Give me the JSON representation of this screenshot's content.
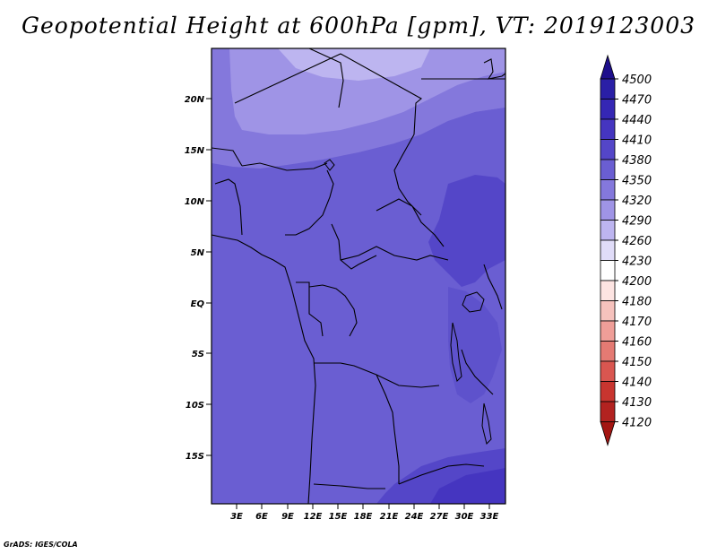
{
  "title": "Geopotential Height at 600hPa [gpm], VT: 2019123003",
  "credit": "GrADS: IGES/COLA",
  "map": {
    "lat_ticks": [
      "20N",
      "15N",
      "10N",
      "5N",
      "EQ",
      "5S",
      "10S",
      "15S"
    ],
    "lon_ticks": [
      "3E",
      "6E",
      "9E",
      "12E",
      "15E",
      "18E",
      "21E",
      "24E",
      "27E",
      "30E",
      "33E"
    ],
    "region": "Central Africa"
  },
  "colorbar": {
    "labels": [
      "4500",
      "4470",
      "4440",
      "4410",
      "4380",
      "4350",
      "4320",
      "4290",
      "4260",
      "4230",
      "4200",
      "4180",
      "4170",
      "4160",
      "4150",
      "4140",
      "4130",
      "4120"
    ],
    "colors": [
      "#1e0f8c",
      "#2a1fa6",
      "#3527b4",
      "#4535c0",
      "#5446c8",
      "#6a5ed2",
      "#8478dc",
      "#9f94e6",
      "#bdb5f0",
      "#e0dcf8",
      "#ffffff",
      "#fde4e2",
      "#f6c2bd",
      "#ef9e98",
      "#e47a73",
      "#d95650",
      "#c8352f",
      "#b22220",
      "#a31512"
    ]
  }
}
